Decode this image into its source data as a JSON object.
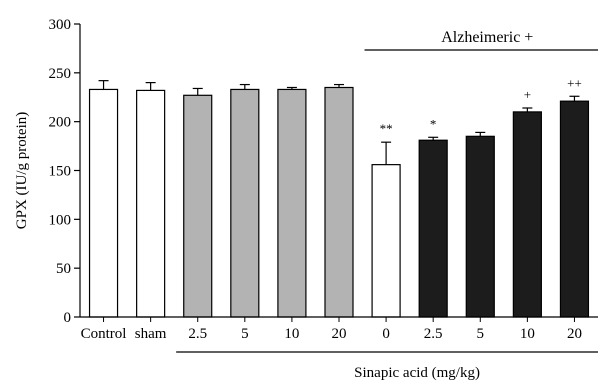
{
  "chart_data": {
    "type": "bar",
    "title": "",
    "ylabel": "GPX (IU/g protein)",
    "xlabel": "Sinapic acid (mg/kg)",
    "ylim": [
      0,
      300
    ],
    "yticks": [
      0,
      50,
      100,
      150,
      200,
      250,
      300
    ],
    "categories": [
      "Control",
      "sham",
      "2.5",
      "5",
      "10",
      "20",
      "0",
      "2.5",
      "5",
      "10",
      "20"
    ],
    "values": [
      233,
      232,
      227,
      233,
      233,
      235,
      156,
      181,
      185,
      210,
      221
    ],
    "errors": [
      9,
      8,
      7,
      5,
      2,
      3,
      23,
      3,
      4,
      4,
      5
    ],
    "fills": [
      "white",
      "white",
      "gray",
      "gray",
      "gray",
      "gray",
      "white",
      "black",
      "black",
      "black",
      "black"
    ],
    "significance": [
      "",
      "",
      "",
      "",
      "",
      "",
      "**",
      "*",
      "",
      "+",
      "++"
    ],
    "group_label": "Alzheimeric +",
    "group_start_index": 6,
    "xlabel_bracket_start_index": 2,
    "grid": false,
    "colors": {
      "white": "#ffffff",
      "gray": "#b3b3b3",
      "black": "#1c1c1c",
      "stroke": "#000000"
    }
  }
}
